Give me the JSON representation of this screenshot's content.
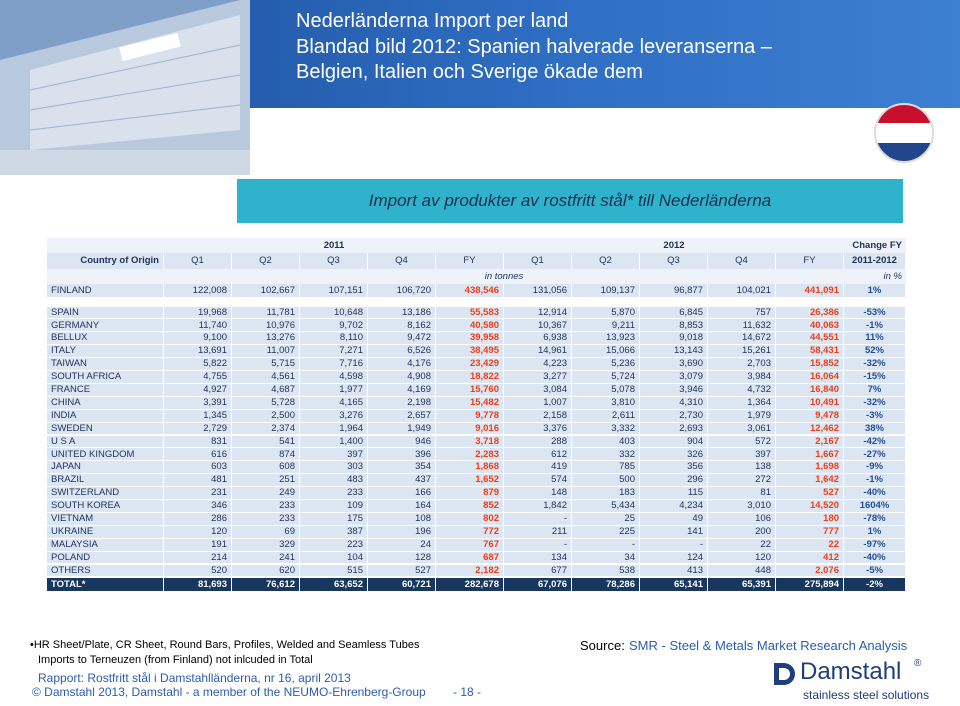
{
  "header": {
    "title_lines": [
      "Nederländerna    Import per land",
      "Blandad bild 2012: Spanien halverade leveranserna –",
      "Belgien, Italien och Sverige ökade dem"
    ]
  },
  "banner": "Import av produkter av rostfritt stål* till Nederländerna",
  "table": {
    "year_headers": [
      "2011",
      "2012",
      "Change FY"
    ],
    "columns": [
      "Country of Origin",
      "Q1",
      "Q2",
      "Q3",
      "Q4",
      "FY",
      "Q1",
      "Q2",
      "Q3",
      "Q4",
      "FY",
      "2011-2012"
    ],
    "units": [
      "in tonnes",
      "in %"
    ],
    "rows": [
      [
        "FINLAND",
        "122,008",
        "102,667",
        "107,151",
        "106,720",
        "438,546",
        "131,056",
        "109,137",
        "96,877",
        "104,021",
        "441,091",
        "1%"
      ],
      [
        "SPAIN",
        "19,968",
        "11,781",
        "10,648",
        "13,186",
        "55,583",
        "12,914",
        "5,870",
        "6,845",
        "757",
        "26,386",
        "-53%"
      ],
      [
        "GERMANY",
        "11,740",
        "10,976",
        "9,702",
        "8,162",
        "40,580",
        "10,367",
        "9,211",
        "8,853",
        "11,632",
        "40,063",
        "-1%"
      ],
      [
        "BELLUX",
        "9,100",
        "13,276",
        "8,110",
        "9,472",
        "39,958",
        "6,938",
        "13,923",
        "9,018",
        "14,672",
        "44,551",
        "11%"
      ],
      [
        "ITALY",
        "13,691",
        "11,007",
        "7,271",
        "6,526",
        "38,495",
        "14,961",
        "15,066",
        "13,143",
        "15,261",
        "58,431",
        "52%"
      ],
      [
        "TAIWAN",
        "5,822",
        "5,715",
        "7,716",
        "4,176",
        "23,429",
        "4,223",
        "5,236",
        "3,690",
        "2,703",
        "15,852",
        "-32%"
      ],
      [
        "SOUTH AFRICA",
        "4,755",
        "4,561",
        "4,598",
        "4,908",
        "18,822",
        "3,277",
        "5,724",
        "3,079",
        "3,984",
        "16,064",
        "-15%"
      ],
      [
        "FRANCE",
        "4,927",
        "4,687",
        "1,977",
        "4,169",
        "15,760",
        "3,084",
        "5,078",
        "3,946",
        "4,732",
        "16,840",
        "7%"
      ],
      [
        "CHINA",
        "3,391",
        "5,728",
        "4,165",
        "2,198",
        "15,482",
        "1,007",
        "3,810",
        "4,310",
        "1,364",
        "10,491",
        "-32%"
      ],
      [
        "INDIA",
        "1,345",
        "2,500",
        "3,276",
        "2,657",
        "9,778",
        "2,158",
        "2,611",
        "2,730",
        "1,979",
        "9,478",
        "-3%"
      ],
      [
        "SWEDEN",
        "2,729",
        "2,374",
        "1,964",
        "1,949",
        "9,016",
        "3,376",
        "3,332",
        "2,693",
        "3,061",
        "12,462",
        "38%"
      ],
      [
        "U S A",
        "831",
        "541",
        "1,400",
        "946",
        "3,718",
        "288",
        "403",
        "904",
        "572",
        "2,167",
        "-42%"
      ],
      [
        "UNITED KINGDOM",
        "616",
        "874",
        "397",
        "396",
        "2,283",
        "612",
        "332",
        "326",
        "397",
        "1,667",
        "-27%"
      ],
      [
        "JAPAN",
        "603",
        "608",
        "303",
        "354",
        "1,868",
        "419",
        "785",
        "356",
        "138",
        "1,698",
        "-9%"
      ],
      [
        "BRAZIL",
        "481",
        "251",
        "483",
        "437",
        "1,652",
        "574",
        "500",
        "296",
        "272",
        "1,642",
        "-1%"
      ],
      [
        "SWITZERLAND",
        "231",
        "249",
        "233",
        "166",
        "879",
        "148",
        "183",
        "115",
        "81",
        "527",
        "-40%"
      ],
      [
        "SOUTH KOREA",
        "346",
        "233",
        "109",
        "164",
        "852",
        "1,842",
        "5,434",
        "4,234",
        "3,010",
        "14,520",
        "1604%"
      ],
      [
        "VIETNAM",
        "286",
        "233",
        "175",
        "108",
        "802",
        "-",
        "25",
        "49",
        "106",
        "180",
        "-78%"
      ],
      [
        "UKRAINE",
        "120",
        "69",
        "387",
        "196",
        "772",
        "211",
        "225",
        "141",
        "200",
        "777",
        "1%"
      ],
      [
        "MALAYSIA",
        "191",
        "329",
        "223",
        "24",
        "767",
        "-",
        "-",
        "-",
        "22",
        "22",
        "-97%"
      ],
      [
        "POLAND",
        "214",
        "241",
        "104",
        "128",
        "687",
        "134",
        "34",
        "124",
        "120",
        "412",
        "-40%"
      ],
      [
        "OTHERS",
        "520",
        "620",
        "515",
        "527",
        "2,182",
        "677",
        "538",
        "413",
        "448",
        "2,076",
        "-5%"
      ],
      [
        "TOTAL*",
        "81,693",
        "76,612",
        "63,652",
        "60,721",
        "282,678",
        "67,076",
        "78,286",
        "65,141",
        "65,391",
        "275,894",
        "-2%"
      ]
    ]
  },
  "footer": {
    "notes": [
      "•HR Sheet/Plate, CR Sheet, Round Bars, Profiles, Welded and Seamless Tubes",
      "Imports to Terneuzen (from Finland) not inlcuded in Total"
    ],
    "report": "Rapport: Rostfritt stål i Damstahlländerna, nr 16, april 2013",
    "copyright": "© Damstahl 2013, Damstahl - a member of the NEUMO-Ehrenberg-Group",
    "page": "- 18 -",
    "source_label": "Source:",
    "source": "SMR - Steel & Metals Market Research Analysis",
    "logo": "Damstahl",
    "logo_mark": "®",
    "tagline": "stainless steel solutions"
  }
}
